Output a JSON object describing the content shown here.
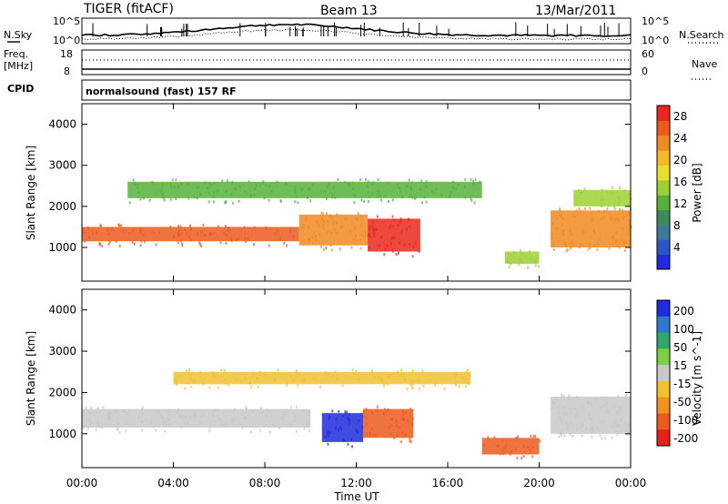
{
  "header": {
    "title": "TIGER (fitACF)",
    "beam": "Beam 13",
    "date": "13/Mar/2011"
  },
  "top_panels": {
    "nsky_label": "N.Sky",
    "nsearch_label": "N.Search",
    "nsky_ticks": [
      "10^5",
      "10^0"
    ],
    "nsearch_ticks": [
      "10^5",
      "10^0"
    ],
    "freq_label": "Freq.",
    "freq_unit": "[MHz]",
    "freq_ticks": [
      "18",
      "8"
    ],
    "nave_label": "Nave",
    "nave_ticks": [
      "60",
      "0"
    ],
    "cpid_label": "CPID",
    "cpid_text": "normalsound (fast) 157 RF"
  },
  "chart_data": [
    {
      "type": "heatmap",
      "quantity": "Power",
      "xlabel": "Time UT",
      "ylabel": "Slant Range [km]",
      "x_ticks": [
        "00:00",
        "04:00",
        "08:00",
        "12:00",
        "16:00",
        "20:00",
        "00:00"
      ],
      "x_range_hours": [
        0,
        24
      ],
      "y_ticks": [
        1000,
        2000,
        3000,
        4000
      ],
      "ylim": [
        180,
        4500
      ],
      "colorbar": {
        "label": "Power [dB]",
        "ticks": [
          4,
          8,
          12,
          16,
          20,
          24,
          28
        ],
        "range": [
          0,
          30
        ],
        "colors": [
          "#1f2bdc",
          "#2c56c4",
          "#3f7a9a",
          "#3c8c5a",
          "#56b03c",
          "#9ed034",
          "#e6e02c",
          "#f4b828",
          "#f08a22",
          "#ec5a1c",
          "#e8281c"
        ]
      },
      "bands": [
        {
          "hours": [
            0,
            9.5
          ],
          "range_km": [
            1150,
            1500
          ],
          "power_db": 26
        },
        {
          "hours": [
            9.5,
            12.5
          ],
          "range_km": [
            1050,
            1800
          ],
          "power_db": 24
        },
        {
          "hours": [
            12.5,
            14.8
          ],
          "range_km": [
            900,
            1700
          ],
          "power_db": 28
        },
        {
          "hours": [
            2,
            17.5
          ],
          "range_km": [
            2200,
            2600
          ],
          "power_db": 12
        },
        {
          "hours": [
            18.5,
            20
          ],
          "range_km": [
            600,
            900
          ],
          "power_db": 16
        },
        {
          "hours": [
            20.5,
            24
          ],
          "range_km": [
            1000,
            1900
          ],
          "power_db": 24
        },
        {
          "hours": [
            21.5,
            24
          ],
          "range_km": [
            2000,
            2400
          ],
          "power_db": 16
        }
      ]
    },
    {
      "type": "heatmap",
      "quantity": "Velocity",
      "xlabel": "Time UT",
      "ylabel": "Slant Range [km]",
      "x_ticks": [
        "00:00",
        "04:00",
        "08:00",
        "12:00",
        "16:00",
        "20:00",
        "00:00"
      ],
      "x_range_hours": [
        0,
        24
      ],
      "y_ticks": [
        1000,
        2000,
        3000,
        4000
      ],
      "ylim": [
        180,
        4500
      ],
      "colorbar": {
        "label": "Velocity [m s^-1]",
        "ticks": [
          200,
          100,
          50,
          15,
          -15,
          -50,
          -100,
          -200
        ],
        "colors": [
          "#1f2bdc",
          "#2c7ad0",
          "#2ea86a",
          "#7ad040",
          "#c8c8c8",
          "#f2c030",
          "#f29020",
          "#ec5a1c",
          "#e8201c"
        ]
      },
      "bands": [
        {
          "hours": [
            0,
            10
          ],
          "range_km": [
            1150,
            1600
          ],
          "velocity": 0
        },
        {
          "hours": [
            10.5,
            12.3
          ],
          "range_km": [
            800,
            1500
          ],
          "velocity": 200
        },
        {
          "hours": [
            12.3,
            14.5
          ],
          "range_km": [
            900,
            1600
          ],
          "velocity": -150
        },
        {
          "hours": [
            17.5,
            20
          ],
          "range_km": [
            500,
            900
          ],
          "velocity": -120
        },
        {
          "hours": [
            20.5,
            24
          ],
          "range_km": [
            1000,
            1900
          ],
          "velocity": 0
        },
        {
          "hours": [
            4,
            17
          ],
          "range_km": [
            2200,
            2500
          ],
          "velocity": -30
        }
      ]
    }
  ]
}
